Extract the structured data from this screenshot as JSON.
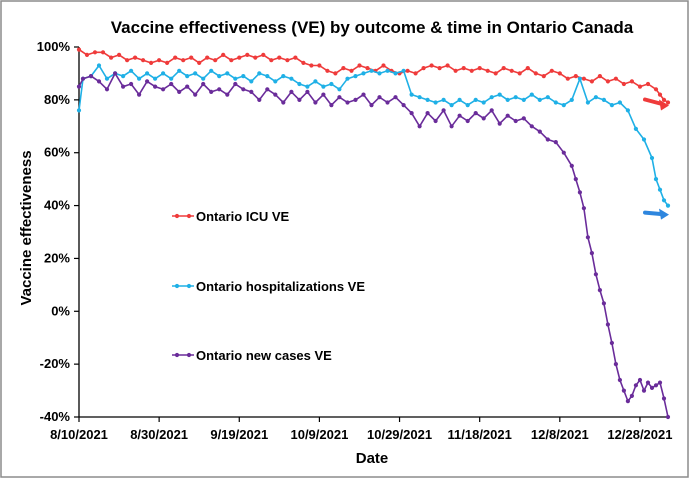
{
  "chart_data": {
    "type": "line",
    "title": "Vaccine effectiveness (VE) by outcome & time in Ontario Canada",
    "xlabel": "Date",
    "ylabel": "Vaccine effectiveness",
    "x_tick_labels": [
      "8/10/2021",
      "8/30/2021",
      "9/19/2021",
      "10/9/2021",
      "10/29/2021",
      "11/18/2021",
      "12/8/2021",
      "12/28/2021"
    ],
    "y_tick_labels": [
      "100%",
      "80%",
      "60%",
      "40%",
      "20%",
      "0%",
      "-20%",
      "-40%"
    ],
    "x_range": [
      "2021-08-10",
      "2022-01-04"
    ],
    "ylim": [
      -40,
      100
    ],
    "grid": false,
    "series": [
      {
        "name": "Ontario ICU VE",
        "color": "#ef3b3b",
        "legend_position": "middle-left",
        "points": [
          [
            "2021-08-10",
            99
          ],
          [
            "2021-08-12",
            97
          ],
          [
            "2021-08-14",
            98
          ],
          [
            "2021-08-16",
            98
          ],
          [
            "2021-08-18",
            96
          ],
          [
            "2021-08-20",
            97
          ],
          [
            "2021-08-22",
            95
          ],
          [
            "2021-08-24",
            96
          ],
          [
            "2021-08-26",
            95
          ],
          [
            "2021-08-28",
            94
          ],
          [
            "2021-08-30",
            95
          ],
          [
            "2021-09-01",
            94
          ],
          [
            "2021-09-03",
            96
          ],
          [
            "2021-09-05",
            95
          ],
          [
            "2021-09-07",
            96
          ],
          [
            "2021-09-09",
            94
          ],
          [
            "2021-09-11",
            96
          ],
          [
            "2021-09-13",
            95
          ],
          [
            "2021-09-15",
            97
          ],
          [
            "2021-09-17",
            95
          ],
          [
            "2021-09-19",
            96
          ],
          [
            "2021-09-21",
            97
          ],
          [
            "2021-09-23",
            96
          ],
          [
            "2021-09-25",
            97
          ],
          [
            "2021-09-27",
            95
          ],
          [
            "2021-09-29",
            96
          ],
          [
            "2021-10-01",
            95
          ],
          [
            "2021-10-03",
            96
          ],
          [
            "2021-10-05",
            94
          ],
          [
            "2021-10-07",
            93
          ],
          [
            "2021-10-09",
            93
          ],
          [
            "2021-10-11",
            91
          ],
          [
            "2021-10-13",
            90
          ],
          [
            "2021-10-15",
            92
          ],
          [
            "2021-10-17",
            91
          ],
          [
            "2021-10-19",
            93
          ],
          [
            "2021-10-21",
            92
          ],
          [
            "2021-10-23",
            91
          ],
          [
            "2021-10-25",
            93
          ],
          [
            "2021-10-27",
            91
          ],
          [
            "2021-10-29",
            90
          ],
          [
            "2021-10-31",
            91
          ],
          [
            "2021-11-02",
            90
          ],
          [
            "2021-11-04",
            92
          ],
          [
            "2021-11-06",
            93
          ],
          [
            "2021-11-08",
            92
          ],
          [
            "2021-11-10",
            93
          ],
          [
            "2021-11-12",
            91
          ],
          [
            "2021-11-14",
            92
          ],
          [
            "2021-11-16",
            91
          ],
          [
            "2021-11-18",
            92
          ],
          [
            "2021-11-20",
            91
          ],
          [
            "2021-11-22",
            90
          ],
          [
            "2021-11-24",
            92
          ],
          [
            "2021-11-26",
            91
          ],
          [
            "2021-11-28",
            90
          ],
          [
            "2021-11-30",
            92
          ],
          [
            "2021-12-02",
            90
          ],
          [
            "2021-12-04",
            89
          ],
          [
            "2021-12-06",
            91
          ],
          [
            "2021-12-08",
            90
          ],
          [
            "2021-12-10",
            88
          ],
          [
            "2021-12-12",
            89
          ],
          [
            "2021-12-14",
            88
          ],
          [
            "2021-12-16",
            87
          ],
          [
            "2021-12-18",
            89
          ],
          [
            "2021-12-20",
            87
          ],
          [
            "2021-12-22",
            88
          ],
          [
            "2021-12-24",
            86
          ],
          [
            "2021-12-26",
            87
          ],
          [
            "2021-12-28",
            85
          ],
          [
            "2021-12-30",
            86
          ],
          [
            "2022-01-01",
            84
          ],
          [
            "2022-01-02",
            82
          ],
          [
            "2022-01-03",
            80
          ],
          [
            "2022-01-04",
            79
          ]
        ]
      },
      {
        "name": "Ontario hospitalizations VE",
        "color": "#1fb0e6",
        "legend_position": "middle-left",
        "points": [
          [
            "2021-08-10",
            76
          ],
          [
            "2021-08-11",
            88
          ],
          [
            "2021-08-13",
            89
          ],
          [
            "2021-08-15",
            93
          ],
          [
            "2021-08-17",
            88
          ],
          [
            "2021-08-19",
            90
          ],
          [
            "2021-08-21",
            89
          ],
          [
            "2021-08-23",
            91
          ],
          [
            "2021-08-25",
            88
          ],
          [
            "2021-08-27",
            90
          ],
          [
            "2021-08-29",
            88
          ],
          [
            "2021-08-31",
            90
          ],
          [
            "2021-09-02",
            88
          ],
          [
            "2021-09-04",
            91
          ],
          [
            "2021-09-06",
            89
          ],
          [
            "2021-09-08",
            90
          ],
          [
            "2021-09-10",
            88
          ],
          [
            "2021-09-12",
            91
          ],
          [
            "2021-09-14",
            89
          ],
          [
            "2021-09-16",
            90
          ],
          [
            "2021-09-18",
            88
          ],
          [
            "2021-09-20",
            89
          ],
          [
            "2021-09-22",
            87
          ],
          [
            "2021-09-24",
            90
          ],
          [
            "2021-09-26",
            89
          ],
          [
            "2021-09-28",
            87
          ],
          [
            "2021-09-30",
            89
          ],
          [
            "2021-10-02",
            88
          ],
          [
            "2021-10-04",
            86
          ],
          [
            "2021-10-06",
            85
          ],
          [
            "2021-10-08",
            87
          ],
          [
            "2021-10-10",
            85
          ],
          [
            "2021-10-12",
            86
          ],
          [
            "2021-10-14",
            84
          ],
          [
            "2021-10-16",
            88
          ],
          [
            "2021-10-18",
            89
          ],
          [
            "2021-10-20",
            90
          ],
          [
            "2021-10-22",
            91
          ],
          [
            "2021-10-24",
            90
          ],
          [
            "2021-10-26",
            91
          ],
          [
            "2021-10-28",
            90
          ],
          [
            "2021-10-30",
            91
          ],
          [
            "2021-11-01",
            82
          ],
          [
            "2021-11-03",
            81
          ],
          [
            "2021-11-05",
            80
          ],
          [
            "2021-11-07",
            79
          ],
          [
            "2021-11-09",
            80
          ],
          [
            "2021-11-11",
            78
          ],
          [
            "2021-11-13",
            80
          ],
          [
            "2021-11-15",
            78
          ],
          [
            "2021-11-17",
            80
          ],
          [
            "2021-11-19",
            79
          ],
          [
            "2021-11-21",
            81
          ],
          [
            "2021-11-23",
            82
          ],
          [
            "2021-11-25",
            80
          ],
          [
            "2021-11-27",
            81
          ],
          [
            "2021-11-29",
            80
          ],
          [
            "2021-12-01",
            82
          ],
          [
            "2021-12-03",
            80
          ],
          [
            "2021-12-05",
            81
          ],
          [
            "2021-12-07",
            79
          ],
          [
            "2021-12-09",
            78
          ],
          [
            "2021-12-11",
            80
          ],
          [
            "2021-12-13",
            88
          ],
          [
            "2021-12-15",
            79
          ],
          [
            "2021-12-17",
            81
          ],
          [
            "2021-12-19",
            80
          ],
          [
            "2021-12-21",
            78
          ],
          [
            "2021-12-23",
            79
          ],
          [
            "2021-12-25",
            76
          ],
          [
            "2021-12-27",
            69
          ],
          [
            "2021-12-29",
            65
          ],
          [
            "2021-12-31",
            58
          ],
          [
            "2022-01-01",
            50
          ],
          [
            "2022-01-02",
            46
          ],
          [
            "2022-01-03",
            42
          ],
          [
            "2022-01-04",
            40
          ]
        ]
      },
      {
        "name": "Ontario new cases VE",
        "color": "#6a2c9a",
        "legend_position": "middle-left",
        "points": [
          [
            "2021-08-10",
            85
          ],
          [
            "2021-08-11",
            88
          ],
          [
            "2021-08-13",
            89
          ],
          [
            "2021-08-15",
            87
          ],
          [
            "2021-08-17",
            84
          ],
          [
            "2021-08-19",
            90
          ],
          [
            "2021-08-21",
            85
          ],
          [
            "2021-08-23",
            86
          ],
          [
            "2021-08-25",
            82
          ],
          [
            "2021-08-27",
            87
          ],
          [
            "2021-08-29",
            85
          ],
          [
            "2021-08-31",
            84
          ],
          [
            "2021-09-02",
            86
          ],
          [
            "2021-09-04",
            83
          ],
          [
            "2021-09-06",
            85
          ],
          [
            "2021-09-08",
            82
          ],
          [
            "2021-09-10",
            86
          ],
          [
            "2021-09-12",
            83
          ],
          [
            "2021-09-14",
            84
          ],
          [
            "2021-09-16",
            82
          ],
          [
            "2021-09-18",
            86
          ],
          [
            "2021-09-20",
            84
          ],
          [
            "2021-09-22",
            83
          ],
          [
            "2021-09-24",
            80
          ],
          [
            "2021-09-26",
            84
          ],
          [
            "2021-09-28",
            82
          ],
          [
            "2021-09-30",
            79
          ],
          [
            "2021-10-02",
            83
          ],
          [
            "2021-10-04",
            80
          ],
          [
            "2021-10-06",
            83
          ],
          [
            "2021-10-08",
            79
          ],
          [
            "2021-10-10",
            82
          ],
          [
            "2021-10-12",
            78
          ],
          [
            "2021-10-14",
            81
          ],
          [
            "2021-10-16",
            79
          ],
          [
            "2021-10-18",
            80
          ],
          [
            "2021-10-20",
            82
          ],
          [
            "2021-10-22",
            78
          ],
          [
            "2021-10-24",
            81
          ],
          [
            "2021-10-26",
            79
          ],
          [
            "2021-10-28",
            81
          ],
          [
            "2021-10-30",
            78
          ],
          [
            "2021-11-01",
            75
          ],
          [
            "2021-11-03",
            70
          ],
          [
            "2021-11-05",
            75
          ],
          [
            "2021-11-07",
            72
          ],
          [
            "2021-11-09",
            76
          ],
          [
            "2021-11-11",
            70
          ],
          [
            "2021-11-13",
            74
          ],
          [
            "2021-11-15",
            72
          ],
          [
            "2021-11-17",
            75
          ],
          [
            "2021-11-19",
            73
          ],
          [
            "2021-11-21",
            76
          ],
          [
            "2021-11-23",
            71
          ],
          [
            "2021-11-25",
            74
          ],
          [
            "2021-11-27",
            72
          ],
          [
            "2021-11-29",
            73
          ],
          [
            "2021-12-01",
            70
          ],
          [
            "2021-12-03",
            68
          ],
          [
            "2021-12-05",
            65
          ],
          [
            "2021-12-07",
            64
          ],
          [
            "2021-12-09",
            60
          ],
          [
            "2021-12-11",
            55
          ],
          [
            "2021-12-12",
            50
          ],
          [
            "2021-12-13",
            45
          ],
          [
            "2021-12-14",
            39
          ],
          [
            "2021-12-15",
            28
          ],
          [
            "2021-12-16",
            22
          ],
          [
            "2021-12-17",
            14
          ],
          [
            "2021-12-18",
            8
          ],
          [
            "2021-12-19",
            3
          ],
          [
            "2021-12-20",
            -5
          ],
          [
            "2021-12-21",
            -12
          ],
          [
            "2021-12-22",
            -20
          ],
          [
            "2021-12-23",
            -26
          ],
          [
            "2021-12-24",
            -30
          ],
          [
            "2021-12-25",
            -34
          ],
          [
            "2021-12-26",
            -32
          ],
          [
            "2021-12-27",
            -28
          ],
          [
            "2021-12-28",
            -26
          ],
          [
            "2021-12-29",
            -30
          ],
          [
            "2021-12-30",
            -27
          ],
          [
            "2021-12-31",
            -29
          ],
          [
            "2022-01-01",
            -28
          ],
          [
            "2022-01-02",
            -27
          ],
          [
            "2022-01-03",
            -33
          ],
          [
            "2022-01-04",
            -40
          ]
        ]
      }
    ],
    "annotations": [
      {
        "type": "arrow",
        "color": "#ef3b3b",
        "points_to_series": "Ontario ICU VE"
      },
      {
        "type": "arrow",
        "color": "#2e86de",
        "points_to_series": "Ontario hospitalizations VE"
      }
    ]
  }
}
